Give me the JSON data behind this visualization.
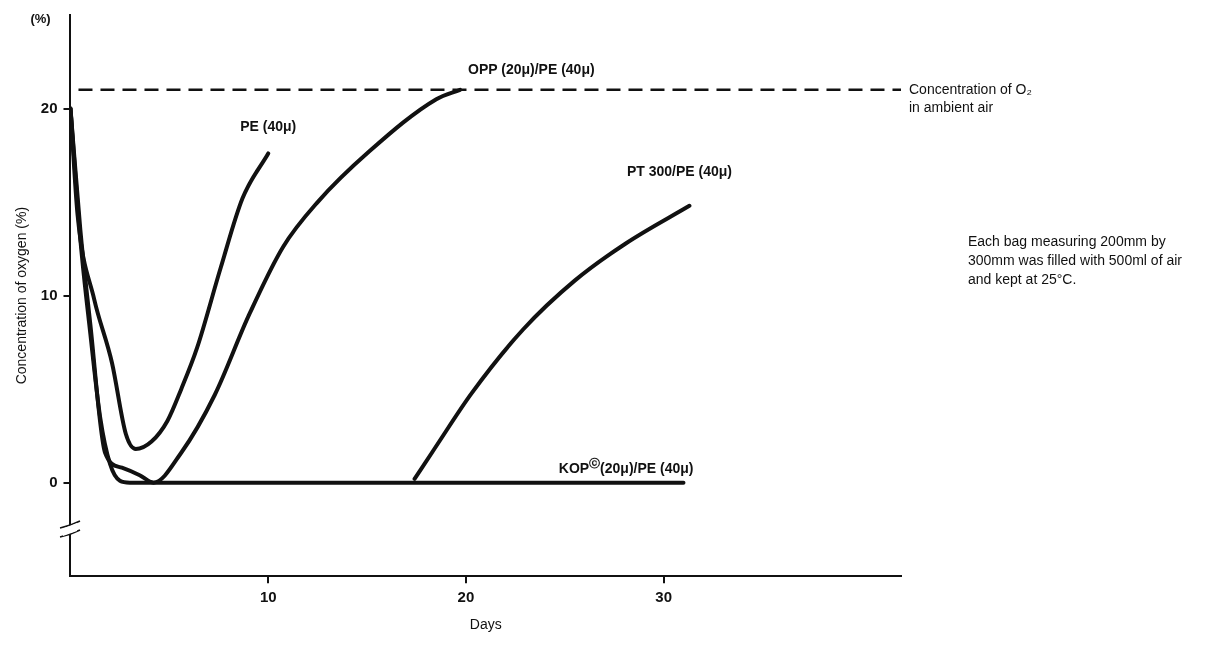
{
  "chart_data": {
    "type": "line",
    "xlabel": "Days",
    "ylabel": "Concentration of oxygen (%)",
    "xlim": [
      0,
      42
    ],
    "xticks": [
      10,
      20,
      30
    ],
    "ylim": [
      -5,
      25
    ],
    "yticks": [
      0,
      10,
      20
    ],
    "grid": false,
    "legend": false,
    "marker": "none",
    "line_style": "solid",
    "series": [
      {
        "name": "PE (40μ)",
        "color": "#111111",
        "x": [
          0,
          0.36,
          1.2,
          2.1,
          2.8,
          3.3,
          4.1,
          4.9,
          5.6,
          6.4,
          7.6,
          8.7,
          10.0
        ],
        "values": [
          20,
          14.3,
          9.8,
          6.4,
          2.6,
          1.8,
          2.2,
          3.3,
          5.0,
          7.2,
          11.5,
          15.2,
          17.6
        ]
      },
      {
        "name": "OPP (20μ)/PE (40μ)",
        "color": "#111111",
        "x": [
          0,
          0.5,
          1.0,
          1.75,
          2.6,
          3.5,
          4.2,
          5.6,
          7.3,
          9.0,
          10.75,
          12.5,
          15.1,
          18.5,
          19.7
        ],
        "values": [
          20,
          13.5,
          8.5,
          1.6,
          0.8,
          0.4,
          0,
          1.6,
          4.7,
          8.9,
          12.6,
          15.0,
          17.7,
          20.5,
          21.0
        ]
      },
      {
        "name": "PT 300/PE (40μ)",
        "color": "#111111",
        "x": [
          17.4,
          18.4,
          20.3,
          22.9,
          25.5,
          28.1,
          31.3
        ],
        "values": [
          0.2,
          1.8,
          4.8,
          8.2,
          10.8,
          12.8,
          14.8
        ]
      },
      {
        "name": "KOP$^{ⓒ}$(20μ)/PE (40μ)",
        "color": "#111111",
        "x": [
          0,
          0.5,
          1.0,
          1.5,
          2.0,
          2.5,
          3.0,
          31.0
        ],
        "values": [
          20,
          13,
          8,
          3.5,
          1,
          0.1,
          0,
          0
        ]
      }
    ],
    "ref_lines": [
      {
        "axis": "y",
        "value": 21,
        "label": "Concentration of O₂ in ambient air",
        "color": "#111111",
        "line_style": "dashed"
      }
    ],
    "annotations": [
      "(%)",
      "Each bag measuring 200mm by 300mm was filled with 500ml of air and kept at 25°C."
    ]
  }
}
